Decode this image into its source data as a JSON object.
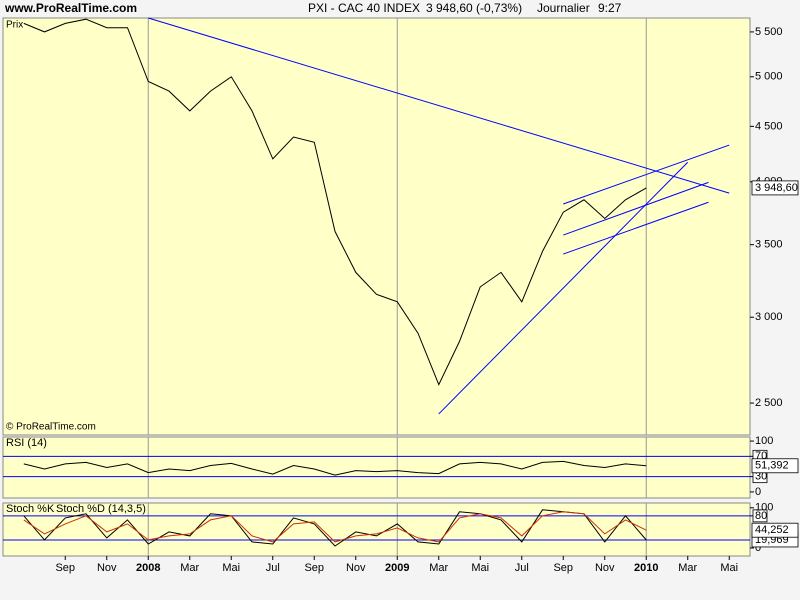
{
  "header": {
    "site": "www.ProRealTime.com",
    "instrument": "PXI - CAC 40 INDEX",
    "quote": "3 948,60 (-0,73%)",
    "period": "Journalier",
    "time": "9:27"
  },
  "chart_data": [
    {
      "type": "line",
      "panel_label": "Prix",
      "watermark": "© ProRealTime.com",
      "log_scale": true,
      "xlim": [
        "2007-06",
        "2010-06"
      ],
      "x": [
        "2007-07",
        "2007-08",
        "2007-09",
        "2007-10",
        "2007-11",
        "2007-12",
        "2008-01",
        "2008-02",
        "2008-03",
        "2008-04",
        "2008-05",
        "2008-06",
        "2008-07",
        "2008-08",
        "2008-09",
        "2008-10",
        "2008-11",
        "2008-12",
        "2009-01",
        "2009-02",
        "2009-03",
        "2009-04",
        "2009-05",
        "2009-06",
        "2009-07",
        "2009-08",
        "2009-09",
        "2009-10",
        "2009-11",
        "2009-12",
        "2010-01"
      ],
      "series": [
        {
          "color": "#000000",
          "last_value_label": "3 948,60",
          "values": [
            5600,
            5500,
            5600,
            5650,
            5550,
            5550,
            4950,
            4850,
            4650,
            4850,
            5000,
            4650,
            4200,
            4400,
            4350,
            3600,
            3300,
            3150,
            3100,
            2900,
            2600,
            2850,
            3200,
            3300,
            3100,
            3450,
            3750,
            3850,
            3700,
            3850,
            3948.6
          ]
        }
      ],
      "trendlines": [
        {
          "color": "#0000ff",
          "x": [
            "2008-01",
            "2010-05"
          ],
          "y": [
            5665,
            3905
          ]
        },
        {
          "color": "#0000ff",
          "x": [
            "2009-03",
            "2010-03"
          ],
          "y": [
            2443,
            4170
          ]
        },
        {
          "color": "#0000ff",
          "x": [
            "2009-09",
            "2010-05"
          ],
          "y": [
            3816,
            4325
          ]
        },
        {
          "color": "#0000ff",
          "x": [
            "2009-09",
            "2010-04"
          ],
          "y": [
            3572,
            3995
          ]
        },
        {
          "color": "#0000ff",
          "x": [
            "2009-09",
            "2010-04"
          ],
          "y": [
            3431,
            3830
          ]
        }
      ],
      "ylim": [
        2336,
        5665
      ],
      "yticks": [
        {
          "value": 2500,
          "label": "2 500"
        },
        {
          "value": 3000,
          "label": "3 000"
        },
        {
          "value": 3500,
          "label": "3 500"
        },
        {
          "value": 4000,
          "label": "4 000"
        },
        {
          "value": 4500,
          "label": "4 500"
        },
        {
          "value": 5000,
          "label": "5 000"
        },
        {
          "value": 5500,
          "label": "5 500"
        }
      ]
    },
    {
      "type": "line",
      "xlim": [
        "2007-06",
        "2010-06"
      ],
      "x": [
        "2007-07",
        "2007-08",
        "2007-09",
        "2007-10",
        "2007-11",
        "2007-12",
        "2008-01",
        "2008-02",
        "2008-03",
        "2008-04",
        "2008-05",
        "2008-06",
        "2008-07",
        "2008-08",
        "2008-09",
        "2008-10",
        "2008-11",
        "2008-12",
        "2009-01",
        "2009-02",
        "2009-03",
        "2009-04",
        "2009-05",
        "2009-06",
        "2009-07",
        "2009-08",
        "2009-09",
        "2009-10",
        "2009-11",
        "2009-12",
        "2010-01"
      ],
      "series": [
        {
          "name": "RSI (14)",
          "color": "#000000",
          "last_value_label": "51,392",
          "values": [
            55,
            45,
            55,
            58,
            48,
            55,
            38,
            45,
            42,
            52,
            56,
            45,
            35,
            52,
            45,
            33,
            42,
            40,
            42,
            38,
            36,
            55,
            58,
            55,
            45,
            58,
            60,
            52,
            48,
            55,
            51.392
          ]
        }
      ],
      "levels": [
        30,
        70
      ],
      "level_color": "#0000ff",
      "ylim": [
        -12,
        108
      ],
      "yticks": [
        0,
        30,
        70,
        100
      ]
    },
    {
      "type": "line",
      "xlim": [
        "2007-06",
        "2010-06"
      ],
      "x": [
        "2007-07",
        "2007-08",
        "2007-09",
        "2007-10",
        "2007-11",
        "2007-12",
        "2008-01",
        "2008-02",
        "2008-03",
        "2008-04",
        "2008-05",
        "2008-06",
        "2008-07",
        "2008-08",
        "2008-09",
        "2008-10",
        "2008-11",
        "2008-12",
        "2009-01",
        "2009-02",
        "2009-03",
        "2009-04",
        "2009-05",
        "2009-06",
        "2009-07",
        "2009-08",
        "2009-09",
        "2009-10",
        "2009-11",
        "2009-12",
        "2010-01"
      ],
      "series": [
        {
          "name": "Stoch %K",
          "color": "#000000",
          "last_value_label": "19,969",
          "values": [
            80,
            20,
            75,
            85,
            25,
            70,
            10,
            40,
            30,
            85,
            80,
            15,
            10,
            75,
            60,
            5,
            40,
            30,
            60,
            15,
            10,
            90,
            85,
            70,
            15,
            95,
            90,
            85,
            15,
            80,
            19.969
          ]
        },
        {
          "name": "Stoch %D (14,3,5)",
          "color": "#cc3300",
          "last_value_label": "44,252",
          "values": [
            70,
            35,
            60,
            80,
            40,
            60,
            20,
            30,
            35,
            70,
            80,
            30,
            15,
            60,
            65,
            15,
            30,
            35,
            50,
            25,
            15,
            75,
            85,
            75,
            30,
            80,
            90,
            85,
            35,
            70,
            44.252
          ]
        }
      ],
      "levels": [
        20,
        80
      ],
      "level_color": "#0000ff",
      "ylim": [
        -20,
        112
      ],
      "yticks": [
        0,
        80,
        100
      ],
      "xticks": [
        {
          "value": "2007-09",
          "label": "Sep"
        },
        {
          "value": "2007-11",
          "label": "Nov"
        },
        {
          "value": "2008-01",
          "label": "2008"
        },
        {
          "value": "2008-03",
          "label": "Mar"
        },
        {
          "value": "2008-05",
          "label": "Mai"
        },
        {
          "value": "2008-07",
          "label": "Jul"
        },
        {
          "value": "2008-09",
          "label": "Sep"
        },
        {
          "value": "2008-11",
          "label": "Nov"
        },
        {
          "value": "2009-01",
          "label": "2009"
        },
        {
          "value": "2009-03",
          "label": "Mar"
        },
        {
          "value": "2009-05",
          "label": "Mai"
        },
        {
          "value": "2009-07",
          "label": "Jul"
        },
        {
          "value": "2009-09",
          "label": "Sep"
        },
        {
          "value": "2009-11",
          "label": "Nov"
        },
        {
          "value": "2010-01",
          "label": "2010"
        },
        {
          "value": "2010-03",
          "label": "Mar"
        },
        {
          "value": "2010-05",
          "label": "Mai"
        }
      ]
    }
  ]
}
